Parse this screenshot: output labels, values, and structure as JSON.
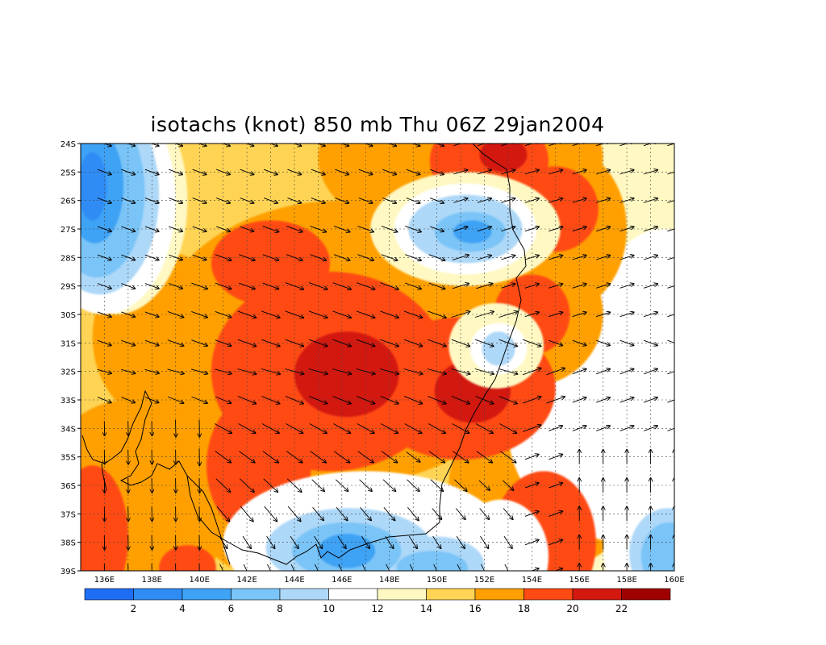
{
  "title": "isotachs (knot) 850 mb Thu 06Z 29jan2004",
  "map": {
    "lon_labels": [
      "136E",
      "138E",
      "140E",
      "142E",
      "144E",
      "146E",
      "148E",
      "150E",
      "152E",
      "154E",
      "156E",
      "158E",
      "160E"
    ],
    "lat_labels": [
      "24S",
      "25S",
      "26S",
      "27S",
      "28S",
      "29S",
      "30S",
      "31S",
      "32S",
      "33S",
      "34S",
      "35S",
      "36S",
      "37S",
      "38S",
      "39S"
    ],
    "lon_range": [
      135,
      160
    ],
    "lat_range": [
      -24,
      -39
    ]
  },
  "colorbar": {
    "labels": [
      "2",
      "4",
      "6",
      "8",
      "10",
      "12",
      "14",
      "16",
      "18",
      "20",
      "22"
    ],
    "colors": [
      "#1e6ef5",
      "#2f8cf5",
      "#3ea2f5",
      "#7ac4f7",
      "#aed8f8",
      "#ffffff",
      "#fff8c2",
      "#ffd455",
      "#ffa000",
      "#ff4a14",
      "#d31810",
      "#a00000"
    ]
  },
  "chart_data": {
    "type": "heatmap",
    "title": "isotachs (knot) 850 mb Thu 06Z 29jan2004",
    "xlabel": "",
    "ylabel": "",
    "x_ticks": [
      "136E",
      "138E",
      "140E",
      "142E",
      "144E",
      "146E",
      "148E",
      "150E",
      "152E",
      "154E",
      "156E",
      "158E",
      "160E"
    ],
    "y_ticks": [
      "24S",
      "25S",
      "26S",
      "27S",
      "28S",
      "29S",
      "30S",
      "31S",
      "32S",
      "33S",
      "34S",
      "35S",
      "36S",
      "37S",
      "38S",
      "39S"
    ],
    "xlim": [
      135,
      160
    ],
    "ylim": [
      -39,
      -24
    ],
    "contour_levels": [
      2,
      4,
      6,
      8,
      10,
      12,
      14,
      16,
      18,
      20,
      22
    ],
    "units": "knot",
    "grid": true,
    "wind_maxima": [
      {
        "lon": 146.0,
        "lat": -32.2,
        "speed": 22
      },
      {
        "lon": 151.3,
        "lat": -32.6,
        "speed": 22
      },
      {
        "lon": 152.8,
        "lat": -24.5,
        "speed": 21
      },
      {
        "lon": 142.4,
        "lat": -35.6,
        "speed": 20
      },
      {
        "lon": 154.3,
        "lat": -29.8,
        "speed": 20
      },
      {
        "lon": 154.6,
        "lat": -38.4,
        "speed": 21
      },
      {
        "lon": 135.3,
        "lat": -38.0,
        "speed": 20
      }
    ],
    "wind_minima": [
      {
        "lon": 135.6,
        "lat": -25.5,
        "speed": 3
      },
      {
        "lon": 151.3,
        "lat": -27.0,
        "speed": 6
      },
      {
        "lon": 152.6,
        "lat": -31.2,
        "speed": 9
      },
      {
        "lon": 146.2,
        "lat": -38.2,
        "speed": 6
      },
      {
        "lon": 149.8,
        "lat": -38.9,
        "speed": 5
      },
      {
        "lon": 159.5,
        "lat": -38.2,
        "speed": 6
      }
    ]
  }
}
